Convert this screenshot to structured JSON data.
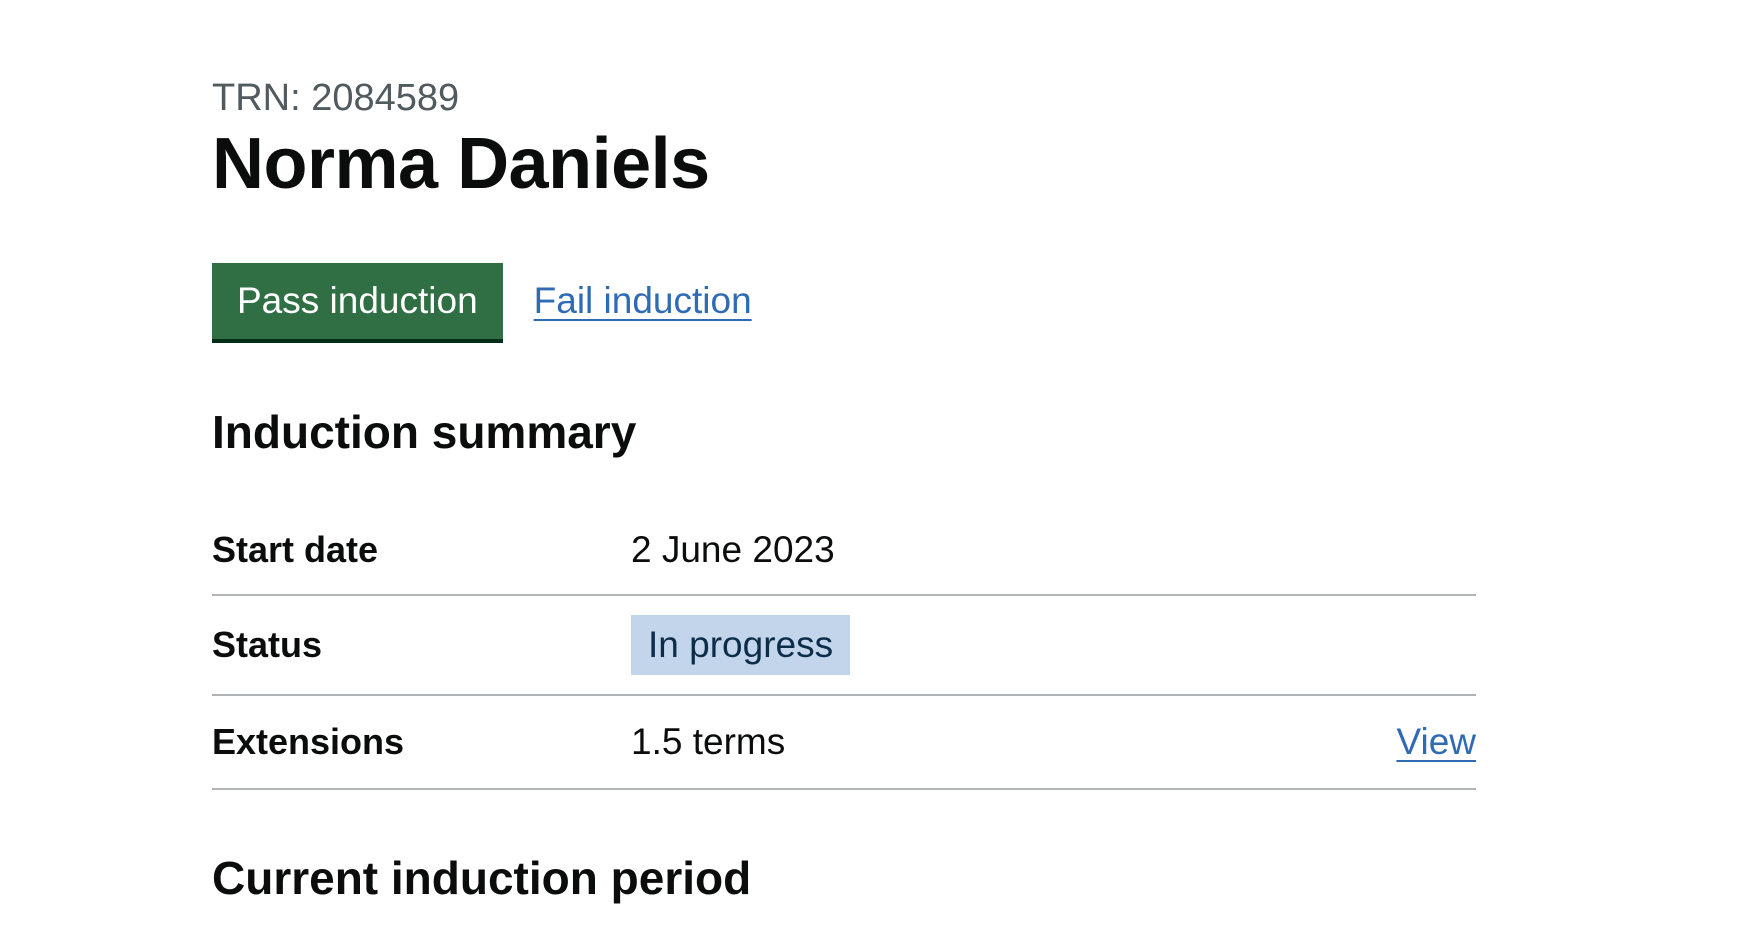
{
  "header": {
    "caption": "TRN: 2084589",
    "title": "Norma Daniels"
  },
  "actions": {
    "pass_label": "Pass induction",
    "fail_label": "Fail induction"
  },
  "induction_summary": {
    "heading": "Induction summary",
    "rows": [
      {
        "key": "Start date",
        "value": "2 June 2023"
      },
      {
        "key": "Status",
        "value": "In progress"
      },
      {
        "key": "Extensions",
        "value": "1.5 terms",
        "action": "View"
      }
    ]
  },
  "current_period": {
    "heading": "Current induction period"
  },
  "colors": {
    "primary_button": "#2f6f43",
    "link": "#2f6bb5",
    "status_tag_bg": "#c3d5ea",
    "border": "#b1b4b6"
  }
}
